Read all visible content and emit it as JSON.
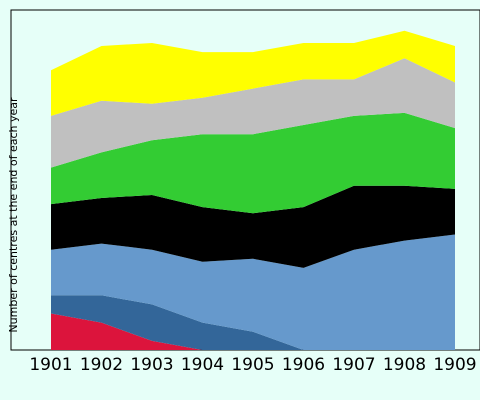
{
  "chart_data": {
    "type": "area",
    "stacked": true,
    "title": "",
    "xlabel": "",
    "ylabel": "Number of centres at the end of each year",
    "categories": [
      "1901",
      "1902",
      "1903",
      "1904",
      "1905",
      "1906",
      "1907",
      "1908",
      "1909"
    ],
    "ylim": [
      0,
      100
    ],
    "grid": false,
    "legend": "none",
    "background_color": "#e6fff8",
    "plot_border_color": "#000000",
    "series": [
      {
        "color": "#dc143c",
        "values": [
          12,
          9,
          3,
          0,
          0,
          0,
          0,
          0,
          0
        ]
      },
      {
        "color": "#336699",
        "values": [
          6,
          9,
          12,
          9,
          6,
          0,
          0,
          0,
          0
        ]
      },
      {
        "color": "#6699cc",
        "values": [
          15,
          17,
          18,
          20,
          24,
          27,
          33,
          36,
          38
        ]
      },
      {
        "color": "#000000",
        "values": [
          15,
          15,
          18,
          18,
          15,
          20,
          21,
          18,
          15
        ]
      },
      {
        "color": "#33cc33",
        "values": [
          12,
          15,
          18,
          24,
          26,
          27,
          23,
          24,
          20
        ]
      },
      {
        "color": "#c0c0c0",
        "values": [
          17,
          17,
          12,
          12,
          15,
          15,
          12,
          18,
          15
        ]
      },
      {
        "color": "#ffff00",
        "values": [
          15,
          18,
          20,
          15,
          12,
          12,
          12,
          9,
          12
        ]
      }
    ]
  }
}
